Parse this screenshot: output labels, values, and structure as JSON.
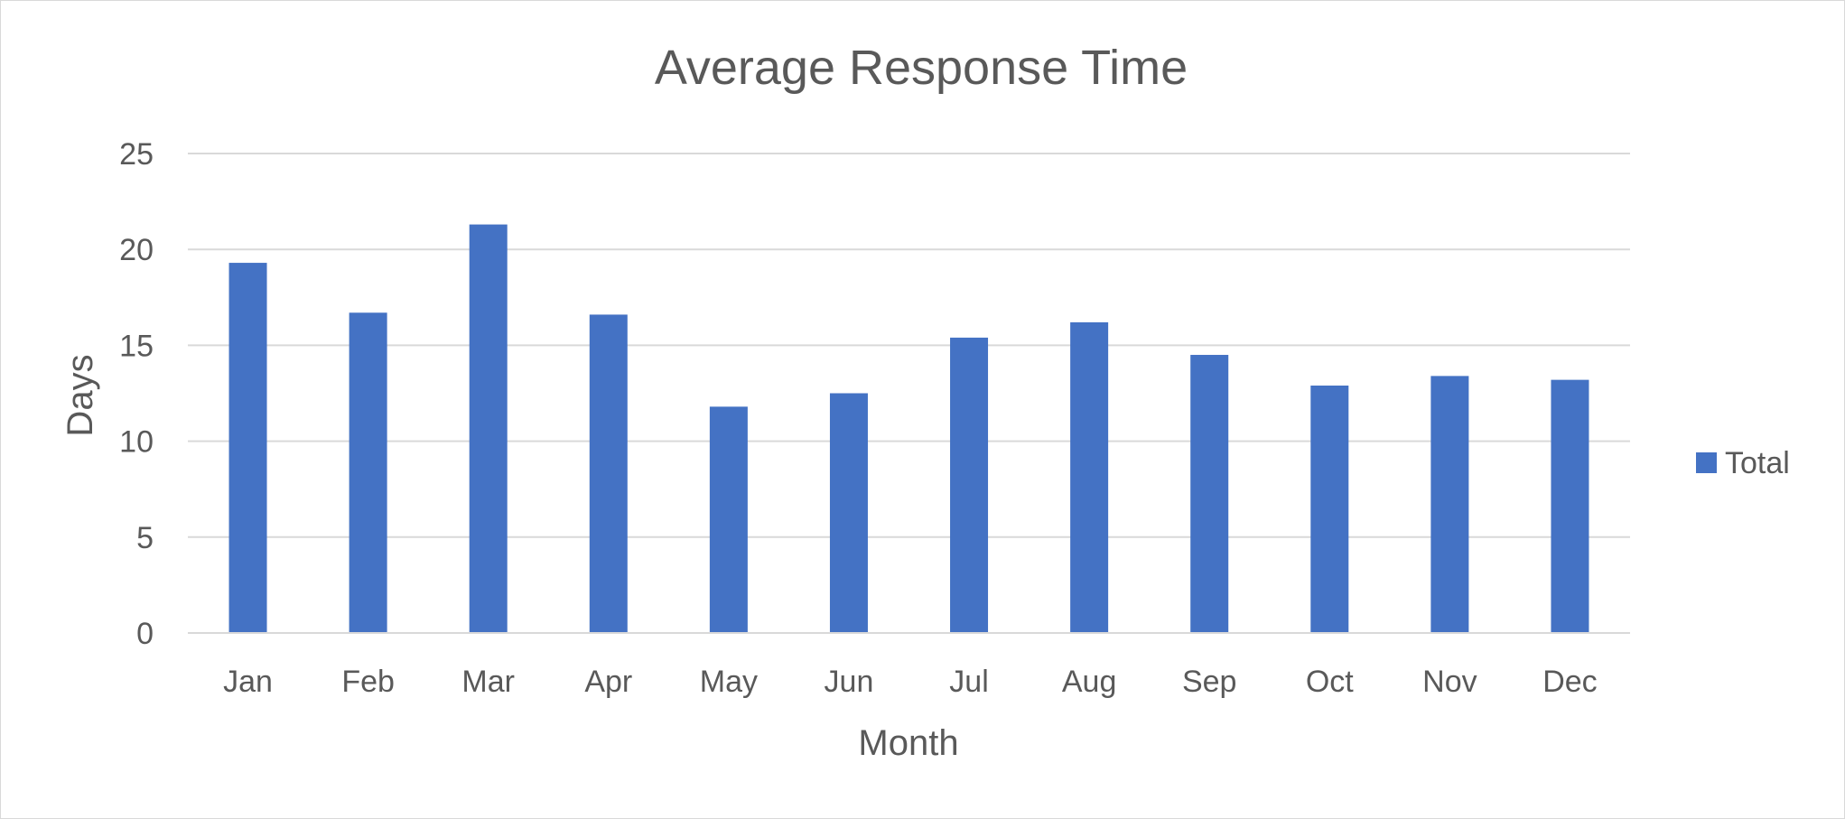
{
  "chart_data": {
    "type": "bar",
    "title": "Average Response Time",
    "xlabel": "Month",
    "ylabel": "Days",
    "categories": [
      "Jan",
      "Feb",
      "Mar",
      "Apr",
      "May",
      "Jun",
      "Jul",
      "Aug",
      "Sep",
      "Oct",
      "Nov",
      "Dec"
    ],
    "series": [
      {
        "name": "Total",
        "values": [
          19.3,
          16.7,
          21.3,
          16.6,
          11.8,
          12.5,
          15.4,
          16.2,
          14.5,
          12.9,
          13.4,
          13.2
        ]
      }
    ],
    "ylim": [
      0,
      25
    ],
    "yticks": [
      "0",
      "5",
      "10",
      "15",
      "20",
      "25"
    ],
    "grid": true,
    "legend_position": "right",
    "colors": {
      "bar": "#4472C4",
      "grid": "#d9d9d9",
      "text": "#595959"
    }
  }
}
